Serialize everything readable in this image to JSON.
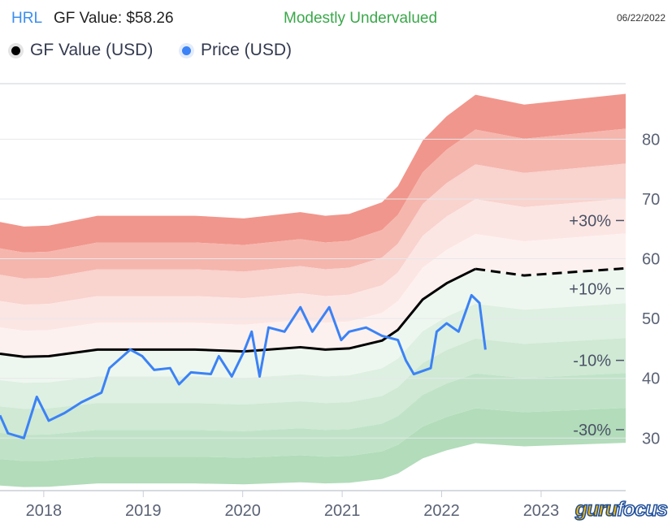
{
  "header": {
    "ticker": "HRL",
    "gf_value_label": "GF Value: $58.26",
    "status": "Modestly Undervalued",
    "date": "06/22/2022"
  },
  "legend": [
    {
      "label": "GF Value (USD)",
      "color": "#000000"
    },
    {
      "label": "Price (USD)",
      "color": "#3b82f6"
    }
  ],
  "logo": {
    "part1": "guru",
    "part2": "focus"
  },
  "chart_data": {
    "type": "line",
    "xlim": [
      2017.56,
      2023.85
    ],
    "ylim": [
      21.2,
      89.3
    ],
    "x_ticks": [
      {
        "v": 2018,
        "label": "2018"
      },
      {
        "v": 2019,
        "label": "2019"
      },
      {
        "v": 2020,
        "label": "2020"
      },
      {
        "v": 2021,
        "label": "2021"
      },
      {
        "v": 2022,
        "label": "2022"
      },
      {
        "v": 2023,
        "label": "2023"
      }
    ],
    "y_ticks": [
      {
        "v": 30,
        "label": "30"
      },
      {
        "v": 40,
        "label": "40"
      },
      {
        "v": 50,
        "label": "50"
      },
      {
        "v": 60,
        "label": "60"
      },
      {
        "v": 70,
        "label": "70"
      },
      {
        "v": 80,
        "label": "80"
      }
    ],
    "band_multipliers": [
      1.5,
      1.4,
      1.3,
      1.2,
      1.1,
      1.0,
      0.9,
      0.8,
      0.7,
      0.6,
      0.5
    ],
    "band_colors": [
      "#f1968c",
      "#f5b6ae",
      "#f9d3ce",
      "#fce6e3",
      "#fdf1ef",
      "#eef7ef",
      "#def0e1",
      "#cfe9d4",
      "#c0e3c7",
      "#b2dcba"
    ],
    "pct_labels": [
      {
        "label": "+30%",
        "v": 66.4
      },
      {
        "label": "+10%",
        "v": 55.0
      },
      {
        "label": "-10%",
        "v": 43.0
      },
      {
        "label": "-30%",
        "v": 31.4
      }
    ],
    "series": [
      {
        "name": "GF Value (USD)",
        "color": "#000000",
        "x": [
          2017.56,
          2017.8,
          2018.05,
          2018.54,
          2019.52,
          2020.01,
          2020.58,
          2020.83,
          2021.07,
          2021.4,
          2021.56,
          2021.81,
          2022.05,
          2022.34
        ],
        "y": [
          44.1,
          43.6,
          43.7,
          44.8,
          44.8,
          44.5,
          45.2,
          44.8,
          45.0,
          46.3,
          48.1,
          53.2,
          55.9,
          58.3
        ]
      },
      {
        "name": "GF Value projection",
        "color": "#000000",
        "dashed": true,
        "x": [
          2022.34,
          2022.83,
          2023.85
        ],
        "y": [
          58.3,
          57.2,
          58.4
        ]
      },
      {
        "name": "Price (USD)",
        "color": "#3b82f6",
        "x": [
          2017.56,
          2017.64,
          2017.8,
          2017.93,
          2018.05,
          2018.21,
          2018.38,
          2018.58,
          2018.66,
          2018.87,
          2018.99,
          2019.11,
          2019.27,
          2019.36,
          2019.48,
          2019.68,
          2019.76,
          2019.89,
          2020.01,
          2020.09,
          2020.17,
          2020.26,
          2020.42,
          2020.58,
          2020.7,
          2020.87,
          2020.99,
          2021.07,
          2021.24,
          2021.4,
          2021.56,
          2021.64,
          2021.72,
          2021.89,
          2021.95,
          2022.05,
          2022.17,
          2022.3,
          2022.38,
          2022.44
        ],
        "y": [
          33.8,
          30.8,
          30.0,
          36.9,
          32.9,
          34.2,
          36.0,
          37.6,
          41.7,
          44.8,
          43.7,
          41.4,
          41.7,
          39.0,
          41.0,
          40.7,
          43.7,
          40.3,
          44.4,
          47.8,
          40.3,
          48.5,
          47.8,
          51.9,
          47.8,
          51.9,
          46.4,
          47.8,
          48.5,
          47.1,
          46.4,
          43.0,
          40.7,
          41.7,
          47.8,
          49.2,
          47.8,
          53.9,
          52.6,
          44.8
        ]
      }
    ]
  }
}
